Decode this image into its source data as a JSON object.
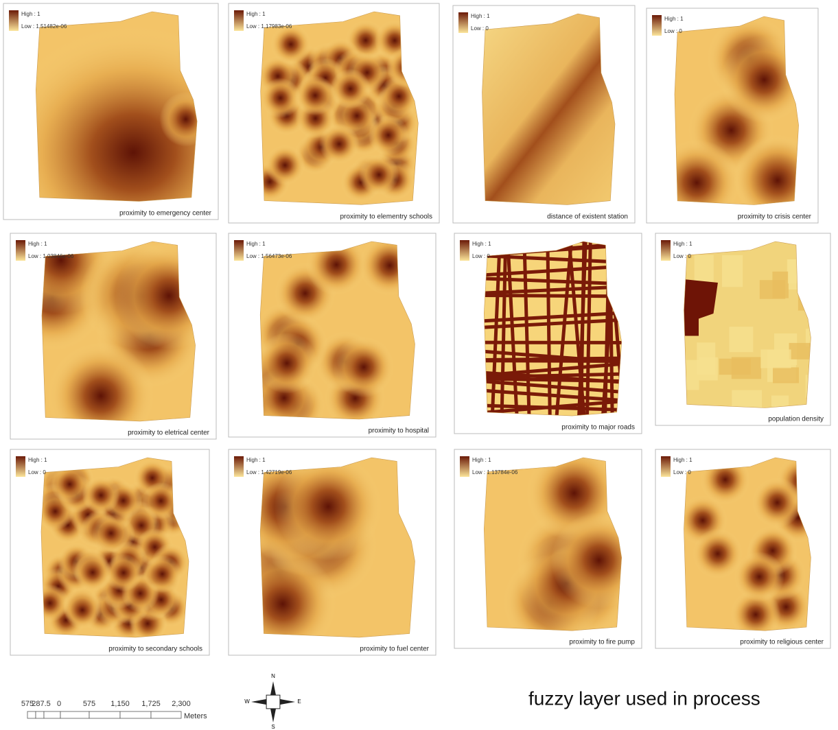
{
  "panels": [
    {
      "caption": "proximity to emergency center",
      "legend_high": "High : 1",
      "legend_low": "Low : 1.51482e-06"
    },
    {
      "caption": "proximity to elementry schools",
      "legend_high": "High : 1",
      "legend_low": "Low : 1.17983e-06"
    },
    {
      "caption": "distance of existent station",
      "legend_high": "High : 1",
      "legend_low": "Low : 0"
    },
    {
      "caption": "proximity to crisis center",
      "legend_high": "High : 1",
      "legend_low": "Low : 0"
    },
    {
      "caption": "proximity to eletrical center",
      "legend_high": "High : 1",
      "legend_low": "Low : 1.03846e-06"
    },
    {
      "caption": "proximity to hospital",
      "legend_high": "High : 1",
      "legend_low": "Low : 1.56473e-06"
    },
    {
      "caption": "proximity to major roads",
      "legend_high": "High : 1",
      "legend_low": "Low : 0"
    },
    {
      "caption": "population density",
      "legend_high": "High : 1",
      "legend_low": "Low : 0"
    },
    {
      "caption": "proximity to secondary schools",
      "legend_high": "High : 1",
      "legend_low": "Low : 0"
    },
    {
      "caption": "proximity to fuel center",
      "legend_high": "High : 1",
      "legend_low": "Low : 1.42719e-06"
    },
    {
      "caption": "proximity to fire pump",
      "legend_high": "High : 1",
      "legend_low": "Low : 1.13784e-06"
    },
    {
      "caption": "proximity to religious center",
      "legend_high": "High : 1",
      "legend_low": "Low : 0"
    }
  ],
  "scale_bar": {
    "labels": [
      "575",
      "287.5",
      "0",
      "575",
      "1,150",
      "1,725",
      "2,300"
    ],
    "unit": "Meters"
  },
  "compass": {
    "n": "N",
    "s": "S",
    "e": "E",
    "w": "W"
  },
  "title": "fuzzy layer used in process"
}
